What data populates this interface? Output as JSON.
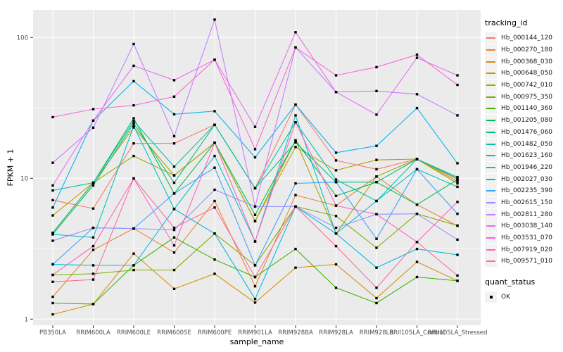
{
  "chart": {
    "x_axis_title": "sample_name",
    "y_axis_title": "FPKM + 1",
    "legend": {
      "title": "tracking_id"
    },
    "legend2": {
      "title": "quant_status",
      "items": [
        {
          "label": "OK",
          "marker": "black-square"
        }
      ]
    },
    "colors": {
      "panel_bg": "#EBEBEB",
      "grid": "#FFFFFF",
      "tick_label": "#4D4D4D",
      "tick_mark": "#333333",
      "point": "#000000"
    }
  },
  "chart_data": {
    "type": "line",
    "xlabel": "sample_name",
    "ylabel": "FPKM + 1",
    "y_scale": "log10",
    "y_ticks": [
      1,
      10,
      100
    ],
    "y_tick_labels": [
      "1",
      "10",
      "100"
    ],
    "y_minor_ticks": [
      3.162,
      31.62
    ],
    "ylim": [
      0.9,
      157
    ],
    "grid": true,
    "legend_position": "right",
    "marker": "square",
    "marker_color": "#000000",
    "categories": [
      "PB350LA",
      "RRIM600LA",
      "RRIM600LE",
      "RRIM600SE",
      "RRIM600PE",
      "RRIM901LA",
      "RRIM928BA",
      "RRIM928LA",
      "RRIM928LB",
      "RRII105LA_Control",
      "RRII105LA_Stressed"
    ],
    "series": [
      {
        "name": "Hb_000144_120",
        "color": "#F8766D",
        "values": [
          7.0,
          6.1,
          17.7,
          17.7,
          24,
          8.5,
          33.4,
          13.4,
          11.6,
          13.7,
          9.8
        ]
      },
      {
        "name": "Hb_000270_180",
        "color": "#EA8331",
        "values": [
          1.44,
          3.1,
          4.4,
          2.97,
          6.9,
          1.71,
          7.6,
          6.4,
          10.3,
          6.5,
          4.6
        ]
      },
      {
        "name": "Hb_000368_030",
        "color": "#D89000",
        "values": [
          1.08,
          1.28,
          2.92,
          1.64,
          2.1,
          1.31,
          2.32,
          2.45,
          1.41,
          2.55,
          1.87
        ]
      },
      {
        "name": "Hb_000648_050",
        "color": "#C09B00",
        "values": [
          5.45,
          9.3,
          23,
          10.5,
          17.9,
          4.97,
          16.7,
          11.4,
          13.5,
          13.7,
          9.5
        ]
      },
      {
        "name": "Hb_000742_010",
        "color": "#A3A500",
        "values": [
          4.1,
          9.3,
          14.4,
          10.5,
          17.9,
          4.97,
          18.6,
          4.05,
          10.3,
          13.7,
          9.2
        ]
      },
      {
        "name": "Hb_000975_350",
        "color": "#7CAE00",
        "values": [
          2.06,
          2.1,
          2.23,
          2.23,
          4.05,
          2.41,
          6.3,
          5.4,
          3.21,
          5.6,
          4.62
        ]
      },
      {
        "name": "Hb_001140_360",
        "color": "#39B600",
        "values": [
          1.3,
          1.28,
          2.41,
          3.8,
          2.65,
          1.99,
          3.15,
          1.67,
          1.3,
          1.99,
          1.87
        ]
      },
      {
        "name": "Hb_001205_080",
        "color": "#00BB4E",
        "values": [
          4.1,
          9.3,
          26.7,
          7.8,
          17.9,
          5.5,
          18.6,
          7.5,
          9.4,
          6.5,
          9.8
        ]
      },
      {
        "name": "Hb_001476_060",
        "color": "#00BF7D",
        "values": [
          4.0,
          8.9,
          24.5,
          9.3,
          24,
          8.5,
          18,
          9.4,
          9.4,
          13.7,
          10
        ]
      },
      {
        "name": "Hb_001482_050",
        "color": "#00C1A3",
        "values": [
          8.2,
          9.3,
          25.5,
          12.1,
          24,
          8.5,
          25,
          9.8,
          6.9,
          13.7,
          10.2
        ]
      },
      {
        "name": "Hb_001623_160",
        "color": "#00BFC4",
        "values": [
          4.0,
          3.8,
          23.5,
          6.05,
          14.4,
          3.56,
          28,
          4.05,
          6.9,
          11.6,
          8.7
        ]
      },
      {
        "name": "Hb_001946_220",
        "color": "#00BAE0",
        "values": [
          2.45,
          2.41,
          2.41,
          6.05,
          4.05,
          1.39,
          6.3,
          4.05,
          2.32,
          3.15,
          2.86
        ]
      },
      {
        "name": "Hb_002027_030",
        "color": "#00B0F6",
        "values": [
          6.2,
          25.7,
          49,
          28.5,
          30,
          14.1,
          33.4,
          15.2,
          17,
          31.5,
          12.8
        ]
      },
      {
        "name": "Hb_002235_390",
        "color": "#35A2FF",
        "values": [
          2.45,
          4.45,
          4.4,
          7.8,
          11.9,
          2.41,
          9.2,
          9.4,
          3.72,
          11.6,
          5.6
        ]
      },
      {
        "name": "Hb_002615_150",
        "color": "#9590FF",
        "values": [
          3.6,
          4.45,
          4.4,
          4.3,
          8.3,
          6.3,
          6.3,
          4.45,
          5.56,
          5.6,
          3.67
        ]
      },
      {
        "name": "Hb_002811_280",
        "color": "#C77CFF",
        "values": [
          12.9,
          22.9,
          90,
          19.9,
          134,
          6.3,
          85,
          41,
          41.7,
          39.6,
          28
        ]
      },
      {
        "name": "Hb_003038_140",
        "color": "#E76BF3",
        "values": [
          8.9,
          25.7,
          63,
          49.8,
          69.5,
          23.2,
          109,
          41,
          28.3,
          71.8,
          53.9
        ]
      },
      {
        "name": "Hb_003531_070",
        "color": "#FA62DB",
        "values": [
          27.2,
          31,
          33,
          38,
          69.5,
          16.1,
          85,
          53.9,
          61.6,
          75.5,
          46.1
        ]
      },
      {
        "name": "Hb_007919_020",
        "color": "#FF62BC",
        "values": [
          2.06,
          3.3,
          9.96,
          3.34,
          17.9,
          3.56,
          25,
          6.4,
          5.56,
          3.53,
          6.8
        ]
      },
      {
        "name": "Hb_009571_010",
        "color": "#FF6A98",
        "values": [
          1.84,
          1.91,
          10,
          4.45,
          6.2,
          1.99,
          6.3,
          3.3,
          1.67,
          3.53,
          2.04
        ]
      }
    ]
  }
}
